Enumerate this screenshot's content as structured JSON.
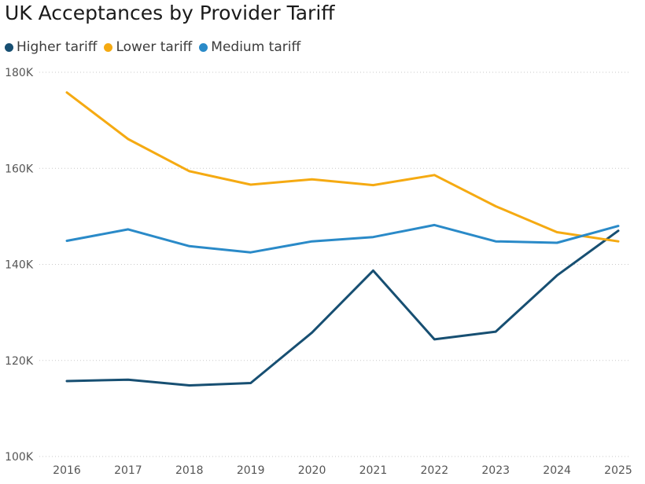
{
  "chart_data": {
    "type": "line",
    "title": "UK Acceptances by Provider Tariff",
    "xlabel": "",
    "ylabel": "",
    "categories": [
      "2016",
      "2017",
      "2018",
      "2019",
      "2020",
      "2021",
      "2022",
      "2023",
      "2024",
      "2025"
    ],
    "ylim": [
      100000,
      180000
    ],
    "yticks": [
      100000,
      120000,
      140000,
      160000,
      180000
    ],
    "ytick_labels": [
      "100K",
      "120K",
      "140K",
      "160K",
      "180K"
    ],
    "grid": true,
    "legend_position": "top-left",
    "series": [
      {
        "name": "Higher tariff",
        "color": "#174f72",
        "values": [
          115700,
          116000,
          114800,
          115300,
          125800,
          138700,
          124400,
          126000,
          137700,
          147000
        ]
      },
      {
        "name": "Lower tariff",
        "color": "#f5aa12",
        "values": [
          175800,
          166100,
          159400,
          156600,
          157700,
          156500,
          158600,
          152100,
          146700,
          144800
        ]
      },
      {
        "name": "Medium tariff",
        "color": "#2a8ac8",
        "values": [
          144900,
          147300,
          143800,
          142500,
          144800,
          145700,
          148200,
          144800,
          144500,
          148000
        ]
      }
    ]
  }
}
